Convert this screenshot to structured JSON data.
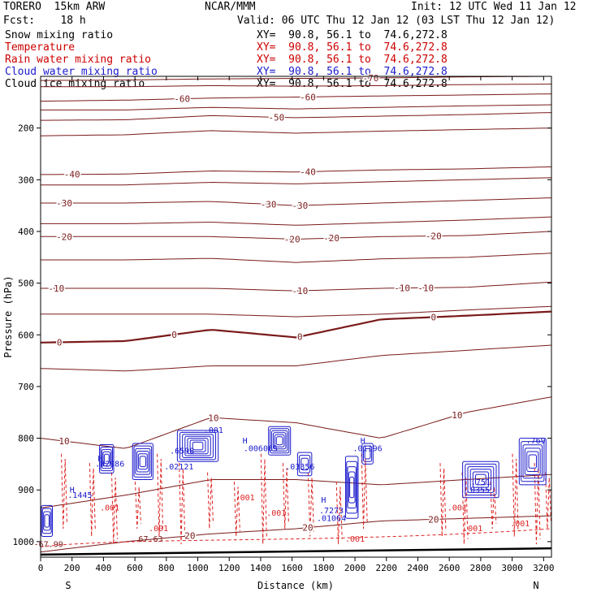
{
  "header": {
    "model": "TORERO  15km ARW",
    "forecast": "Fcst:    18 h",
    "center": "NCAR/MMM",
    "init": "Init: 12 UTC Wed 11 Jan 12",
    "valid": "Valid: 06 UTC Thu 12 Jan 12 (03 LST Thu 12 Jan 12)"
  },
  "fields": [
    {
      "name": "Snow mixing ratio",
      "xy": "XY=  90.8, 56.1 to  74.6,272.8",
      "color": "#000000"
    },
    {
      "name": "Temperature",
      "xy": "XY=  90.8, 56.1 to  74.6,272.8",
      "color": "#cc0000"
    },
    {
      "name": "Rain water mixing ratio",
      "xy": "XY=  90.8, 56.1 to  74.6,272.8",
      "color": "#cc0000"
    },
    {
      "name": "Cloud water mixing ratio",
      "xy": "XY=  90.8, 56.1 to  74.6,272.8",
      "color": "#1a1acc"
    },
    {
      "name": "Cloud ice mixing ratio",
      "xy": "XY=  90.8, 56.1 to  74.6,272.8",
      "color": "#000000"
    }
  ],
  "colors": {
    "temperature": "#7a1a1a",
    "rain": "#dd2222",
    "cloud": "#1a1acc",
    "ground": "#000000"
  },
  "chart_data": {
    "type": "cross-section contour",
    "xlabel": "Distance (km)",
    "ylabel": "Pressure (hPa)",
    "xlim": [
      0,
      3250
    ],
    "ylim": [
      1030,
      100
    ],
    "x_ticks": [
      "0",
      "200",
      "400",
      "600",
      "800",
      "1000",
      "1200",
      "1400",
      "1600",
      "1800",
      "2000",
      "2200",
      "2400",
      "2600",
      "2800",
      "3000",
      "3200"
    ],
    "y_ticks": [
      {
        "p": 200,
        "label": "200"
      },
      {
        "p": 300,
        "label": "300"
      },
      {
        "p": 400,
        "label": "400"
      },
      {
        "p": 500,
        "label": "500"
      },
      {
        "p": 600,
        "label": "600"
      },
      {
        "p": 700,
        "label": "700"
      },
      {
        "p": 800,
        "label": "800"
      },
      {
        "p": 900,
        "label": "900"
      },
      {
        "p": 1000,
        "label": "1000"
      }
    ],
    "endpoints": {
      "left": "S",
      "right": "N"
    },
    "isotherms": [
      {
        "t": -70,
        "p": [
          108,
          107,
          105,
          104,
          103,
          101,
          100
        ],
        "labels": [
          {
            "x": 2100,
            "text": "-70"
          }
        ]
      },
      {
        "t": -65,
        "p": [
          120,
          120,
          118,
          119,
          118,
          116,
          115
        ],
        "labels": []
      },
      {
        "t": -60,
        "p": [
          148,
          146,
          142,
          140,
          138,
          136,
          134
        ],
        "labels": [
          {
            "x": 900,
            "text": "-60"
          },
          {
            "x": 1700,
            "text": "-60"
          }
        ]
      },
      {
        "t": -55,
        "p": [
          165,
          165,
          160,
          163,
          160,
          157,
          155
        ],
        "labels": []
      },
      {
        "t": -50,
        "p": [
          185,
          184,
          176,
          180,
          177,
          174,
          170
        ],
        "labels": [
          {
            "x": 1500,
            "text": "-50"
          }
        ]
      },
      {
        "t": -45,
        "p": [
          215,
          213,
          205,
          210,
          206,
          203,
          200
        ],
        "labels": []
      },
      {
        "t": -40,
        "p": [
          290,
          289,
          283,
          285,
          281,
          279,
          275
        ],
        "labels": [
          {
            "x": 200,
            "text": "-40"
          },
          {
            "x": 1700,
            "text": "-40"
          }
        ]
      },
      {
        "t": -35,
        "p": [
          310,
          310,
          305,
          308,
          304,
          300,
          296
        ],
        "labels": []
      },
      {
        "t": -30,
        "p": [
          345,
          345,
          342,
          350,
          345,
          340,
          335
        ],
        "labels": [
          {
            "x": 150,
            "text": "-30"
          },
          {
            "x": 1450,
            "text": "-30"
          },
          {
            "x": 1650,
            "text": "-30"
          }
        ]
      },
      {
        "t": -25,
        "p": [
          385,
          385,
          382,
          388,
          383,
          378,
          372
        ],
        "labels": []
      },
      {
        "t": -20,
        "p": [
          410,
          410,
          410,
          415,
          410,
          408,
          400
        ],
        "labels": [
          {
            "x": 150,
            "text": "-20"
          },
          {
            "x": 1600,
            "text": "-20"
          },
          {
            "x": 1850,
            "text": "-20"
          },
          {
            "x": 2500,
            "text": "-20"
          }
        ]
      },
      {
        "t": -15,
        "p": [
          455,
          455,
          452,
          460,
          453,
          450,
          442
        ],
        "labels": []
      },
      {
        "t": -10,
        "p": [
          510,
          510,
          510,
          515,
          510,
          508,
          498
        ],
        "labels": [
          {
            "x": 100,
            "text": "-10"
          },
          {
            "x": 1650,
            "text": "-10"
          },
          {
            "x": 2300,
            "text": "-10"
          },
          {
            "x": 2450,
            "text": "-10"
          }
        ]
      },
      {
        "t": -5,
        "p": [
          560,
          560,
          560,
          565,
          560,
          552,
          545
        ],
        "labels": []
      },
      {
        "t": 0,
        "p": [
          615,
          612,
          590,
          605,
          570,
          563,
          555
        ],
        "labels": [
          {
            "x": 120,
            "text": "0"
          },
          {
            "x": 850,
            "text": "0"
          },
          {
            "x": 1650,
            "text": "0"
          },
          {
            "x": 2500,
            "text": "0"
          }
        ]
      },
      {
        "t": 5,
        "p": [
          665,
          670,
          660,
          660,
          640,
          630,
          620
        ],
        "labels": []
      },
      {
        "t": 10,
        "p": [
          800,
          820,
          760,
          770,
          800,
          750,
          720
        ],
        "labels": [
          {
            "x": 150,
            "text": "10"
          },
          {
            "x": 1100,
            "text": "10"
          },
          {
            "x": 2650,
            "text": "10"
          }
        ]
      },
      {
        "t": 15,
        "p": [
          935,
          910,
          880,
          880,
          890,
          880,
          870
        ],
        "labels": []
      },
      {
        "t": 20,
        "p": [
          1020,
          1000,
          985,
          975,
          960,
          955,
          950
        ],
        "labels": [
          {
            "x": 950,
            "text": "20"
          },
          {
            "x": 1700,
            "text": "20"
          },
          {
            "x": 2500,
            "text": "20"
          }
        ]
      }
    ],
    "extrema_labels": [
      {
        "x": 50,
        "p": 1010,
        "text": "-67.99",
        "color": "#7a1a1a"
      },
      {
        "x": 700,
        "p": 1000,
        "text": "67.63",
        "color": "#7a1a1a"
      }
    ],
    "rain_labels": [
      {
        "x": 440,
        "p": 940,
        "text": ".001"
      },
      {
        "x": 750,
        "p": 980,
        "text": ".001"
      },
      {
        "x": 1300,
        "p": 920,
        "text": ".001"
      },
      {
        "x": 1500,
        "p": 950,
        "text": ".001"
      },
      {
        "x": 2000,
        "p": 1000,
        "text": ".001"
      },
      {
        "x": 2650,
        "p": 940,
        "text": ".001"
      },
      {
        "x": 2750,
        "p": 980,
        "text": ".001"
      },
      {
        "x": 3050,
        "p": 970,
        "text": ".001"
      }
    ],
    "cloud_labels": [
      {
        "x": 200,
        "p": 905,
        "text": "H"
      },
      {
        "x": 250,
        "p": 915,
        "text": ".1445"
      },
      {
        "x": 380,
        "p": 845,
        "text": "H"
      },
      {
        "x": 440,
        "p": 855,
        "text": ".02986"
      },
      {
        "x": 900,
        "p": 830,
        "text": ".6598"
      },
      {
        "x": 880,
        "p": 860,
        "text": ".02121"
      },
      {
        "x": 1100,
        "p": 790,
        "text": ".001"
      },
      {
        "x": 1300,
        "p": 810,
        "text": "H"
      },
      {
        "x": 1400,
        "p": 825,
        "text": ".006065"
      },
      {
        "x": 1650,
        "p": 860,
        "text": ".03356"
      },
      {
        "x": 1800,
        "p": 925,
        "text": "H"
      },
      {
        "x": 1850,
        "p": 945,
        "text": ".7273"
      },
      {
        "x": 1850,
        "p": 960,
        "text": ".01064"
      },
      {
        "x": 2050,
        "p": 810,
        "text": "H"
      },
      {
        "x": 2080,
        "p": 825,
        "text": ".01196"
      },
      {
        "x": 2800,
        "p": 890,
        "text": ".751"
      },
      {
        "x": 2780,
        "p": 905,
        "text": ".0355"
      },
      {
        "x": 3150,
        "p": 810,
        "text": ".769"
      }
    ]
  }
}
